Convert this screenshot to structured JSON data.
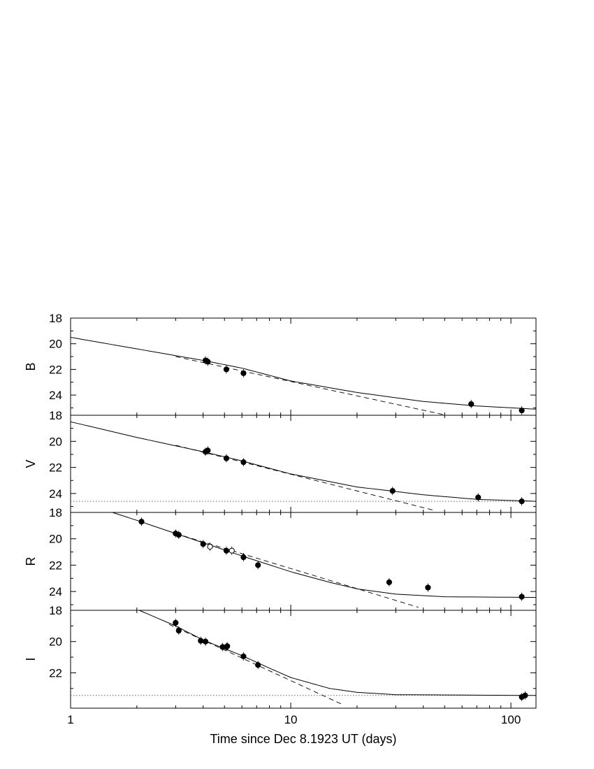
{
  "chart_data": {
    "type": "scatter",
    "x_axis": {
      "label": "Time since Dec 8.1923 UT (days)",
      "scale": "log",
      "range": [
        1,
        130
      ],
      "major_ticks": [
        1,
        10,
        100
      ],
      "tick_labels": [
        "1",
        "10",
        "100"
      ]
    },
    "y_axis": {
      "inverted": true
    },
    "grid": false,
    "panels": [
      {
        "label": "B",
        "ylim": [
          18,
          26.3
        ],
        "y_ticks": [
          18,
          20,
          22,
          24
        ],
        "y_tick_labels": [
          "18",
          "20",
          "22",
          "24"
        ],
        "host_level": 26.25,
        "model_solid": [
          [
            1,
            19.5
          ],
          [
            2,
            20.4
          ],
          [
            4,
            21.3
          ],
          [
            6,
            21.9
          ],
          [
            10,
            22.9
          ],
          [
            20,
            23.8
          ],
          [
            40,
            24.5
          ],
          [
            70,
            24.85
          ],
          [
            130,
            25.1
          ]
        ],
        "model_dashed": [
          [
            3,
            21.0
          ],
          [
            80,
            26.3
          ]
        ],
        "points": [
          {
            "x": 4.1,
            "y": 21.3,
            "filled": true
          },
          {
            "x": 4.2,
            "y": 21.4,
            "filled": true
          },
          {
            "x": 5.1,
            "y": 22.0,
            "filled": true
          },
          {
            "x": 6.1,
            "y": 22.3,
            "filled": true
          },
          {
            "x": 66,
            "y": 24.7,
            "filled": true
          },
          {
            "x": 112,
            "y": 25.2,
            "filled": true
          }
        ]
      },
      {
        "label": "V",
        "ylim": [
          18,
          25.3
        ],
        "y_ticks": [
          18,
          20,
          22,
          24
        ],
        "y_tick_labels": [
          "18",
          "20",
          "22",
          "24"
        ],
        "host_level": 24.6,
        "model_solid": [
          [
            1,
            18.5
          ],
          [
            2,
            19.7
          ],
          [
            4,
            20.8
          ],
          [
            6,
            21.5
          ],
          [
            10,
            22.5
          ],
          [
            20,
            23.5
          ],
          [
            40,
            24.1
          ],
          [
            70,
            24.45
          ],
          [
            130,
            24.6
          ]
        ],
        "model_dashed": [
          [
            3,
            20.3
          ],
          [
            45,
            25.3
          ]
        ],
        "points": [
          {
            "x": 4.1,
            "y": 20.8,
            "filled": true
          },
          {
            "x": 4.2,
            "y": 20.7,
            "filled": true
          },
          {
            "x": 5.1,
            "y": 21.3,
            "filled": true
          },
          {
            "x": 6.1,
            "y": 21.6,
            "filled": true
          },
          {
            "x": 29,
            "y": 23.8,
            "filled": true
          },
          {
            "x": 71,
            "y": 24.3,
            "filled": true
          },
          {
            "x": 112,
            "y": 24.6,
            "filled": true
          }
        ]
      },
      {
        "label": "R",
        "ylim": [
          18,
          25.2
        ],
        "y_ticks": [
          18,
          20,
          22,
          24
        ],
        "y_tick_labels": [
          "18",
          "20",
          "22",
          "24"
        ],
        "model_solid": [
          [
            1.55,
            18.0
          ],
          [
            2,
            18.6
          ],
          [
            3,
            19.6
          ],
          [
            4,
            20.3
          ],
          [
            6,
            21.3
          ],
          [
            10,
            22.5
          ],
          [
            15,
            23.3
          ],
          [
            20,
            23.8
          ],
          [
            30,
            24.2
          ],
          [
            50,
            24.4
          ],
          [
            130,
            24.45
          ]
        ],
        "model_dashed": [
          [
            3,
            19.6
          ],
          [
            38,
            25.2
          ]
        ],
        "points": [
          {
            "x": 2.1,
            "y": 18.7,
            "filled": true
          },
          {
            "x": 3.0,
            "y": 19.6,
            "filled": true
          },
          {
            "x": 3.1,
            "y": 19.7,
            "filled": true
          },
          {
            "x": 4.0,
            "y": 20.4,
            "filled": true
          },
          {
            "x": 4.3,
            "y": 20.6,
            "filled": false
          },
          {
            "x": 5.1,
            "y": 20.9,
            "filled": true
          },
          {
            "x": 5.4,
            "y": 20.9,
            "filled": false
          },
          {
            "x": 6.1,
            "y": 21.4,
            "filled": true
          },
          {
            "x": 7.1,
            "y": 22.0,
            "filled": true
          },
          {
            "x": 28,
            "y": 23.3,
            "filled": true
          },
          {
            "x": 42,
            "y": 23.7,
            "filled": true
          },
          {
            "x": 112,
            "y": 24.4,
            "filled": true
          }
        ]
      },
      {
        "label": "I",
        "ylim": [
          18,
          24.0
        ],
        "y_ticks": [
          18,
          20,
          22
        ],
        "y_tick_labels": [
          "18",
          "20",
          "22"
        ],
        "host_level": 23.45,
        "model_solid": [
          [
            2.05,
            18.0
          ],
          [
            3,
            19.0
          ],
          [
            4,
            19.9
          ],
          [
            6,
            20.9
          ],
          [
            8,
            21.7
          ],
          [
            10,
            22.3
          ],
          [
            15,
            23.0
          ],
          [
            20,
            23.25
          ],
          [
            30,
            23.4
          ],
          [
            130,
            23.45
          ]
        ],
        "model_dashed": [
          [
            2.8,
            18.9
          ],
          [
            17,
            24.0
          ]
        ],
        "points": [
          {
            "x": 3.0,
            "y": 18.8,
            "filled": true
          },
          {
            "x": 3.1,
            "y": 19.3,
            "filled": true
          },
          {
            "x": 3.9,
            "y": 19.95,
            "filled": true
          },
          {
            "x": 4.1,
            "y": 20.0,
            "filled": true
          },
          {
            "x": 4.9,
            "y": 20.35,
            "filled": true
          },
          {
            "x": 5.1,
            "y": 20.35,
            "filled": true
          },
          {
            "x": 5.15,
            "y": 20.3,
            "filled": true
          },
          {
            "x": 6.1,
            "y": 20.95,
            "filled": true
          },
          {
            "x": 7.1,
            "y": 21.5,
            "filled": true
          },
          {
            "x": 112,
            "y": 23.55,
            "filled": true
          },
          {
            "x": 116,
            "y": 23.45,
            "filled": true
          }
        ]
      }
    ]
  }
}
